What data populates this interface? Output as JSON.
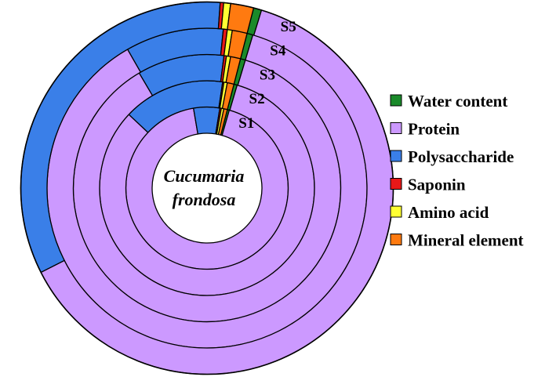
{
  "chart_data": {
    "type": "donut",
    "center_title": [
      "Cucumaria",
      "frondosa"
    ],
    "categories": [
      "Water content",
      "Protein",
      "Polysaccharide",
      "Saponin",
      "Amino acid",
      "Mineral element"
    ],
    "colors": {
      "Water content": "#1a8a2a",
      "Protein": "#cc99ff",
      "Polysaccharide": "#3a7fe8",
      "Saponin": "#e81818",
      "Amino acid": "#ffff33",
      "Mineral element": "#ff7a10"
    },
    "rings": [
      {
        "name": "S1",
        "values": {
          "Water content": 0.4,
          "Protein": 92.9,
          "Polysaccharide": 5.2,
          "Saponin": 0.3,
          "Amino acid": 0.5,
          "Mineral element": 0.7
        }
      },
      {
        "name": "S2",
        "values": {
          "Water content": 0.5,
          "Protein": 82.5,
          "Polysaccharide": 15.3,
          "Saponin": 0.2,
          "Amino acid": 0.5,
          "Mineral element": 1.0
        }
      },
      {
        "name": "S3",
        "values": {
          "Water content": 0.6,
          "Protein": 86.9,
          "Polysaccharide": 10.5,
          "Saponin": 0.3,
          "Amino acid": 0.5,
          "Mineral element": 1.2
        }
      },
      {
        "name": "S4",
        "values": {
          "Water content": 0.6,
          "Protein": 87.1,
          "Polysaccharide": 9.9,
          "Saponin": 0.4,
          "Amino acid": 0.5,
          "Mineral element": 1.5
        }
      },
      {
        "name": "S5",
        "values": {
          "Water content": 0.7,
          "Protein": 62.8,
          "Polysaccharide": 33.6,
          "Saponin": 0.3,
          "Amino acid": 0.6,
          "Mineral element": 2.0
        }
      }
    ],
    "legend": {
      "position": "right"
    }
  }
}
